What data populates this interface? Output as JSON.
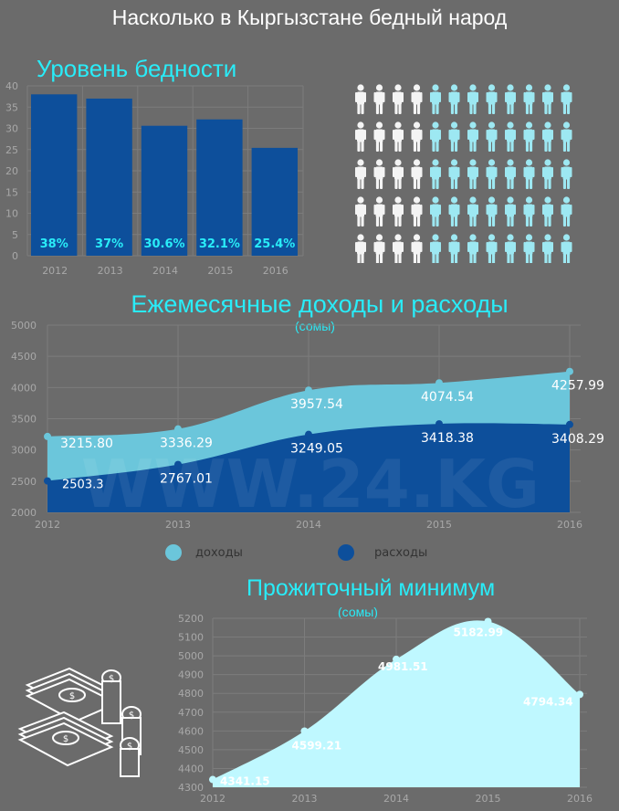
{
  "title": "Насколько в Кыргызстане бедный народ",
  "colors": {
    "background": "#6b6b6b",
    "accent": "#29ecf8",
    "poverty_bar": "#0d4f9b",
    "income": "#6bc6db",
    "expenses": "#0d4f9b",
    "minimum": "#bff8ff",
    "person_white": "#f4f4f4",
    "person_cyan": "#9de8f2"
  },
  "icons": {
    "people": "person-icon",
    "money": "money-stack-icon"
  },
  "pictogram": {
    "rows": 5,
    "per_row": 12,
    "highlighted_per_row": 4
  },
  "watermark": "WWW.24.KG",
  "poverty": {
    "title": "Уровень бедности",
    "chart_data": {
      "type": "bar",
      "categories": [
        "2012",
        "2013",
        "2014",
        "2015",
        "2016"
      ],
      "values": [
        38,
        37,
        30.6,
        32.1,
        25.4
      ],
      "labels": [
        "38%",
        "37%",
        "30.6%",
        "32.1%",
        "25.4%"
      ],
      "ylim": [
        0,
        40
      ],
      "yticks": [
        "0",
        "5",
        "10",
        "15",
        "20",
        "25",
        "30",
        "35",
        "40"
      ],
      "grid": true
    }
  },
  "income_expenses": {
    "title": "Ежемесячные доходы и расходы",
    "unit": "(сомы)",
    "chart_data": {
      "type": "area",
      "x": [
        "2012",
        "2013",
        "2014",
        "2015",
        "2016"
      ],
      "ylim": [
        2000,
        5000
      ],
      "yticks": [
        "2000",
        "2500",
        "3000",
        "3500",
        "4000",
        "4500",
        "5000"
      ],
      "series": [
        {
          "name": "доходы",
          "values": [
            3215.8,
            3336.29,
            3957.54,
            4074.54,
            4257.99
          ],
          "labels": [
            "3215.80",
            "3336.29",
            "3957.54",
            "4074.54",
            "4257.99"
          ]
        },
        {
          "name": "расходы",
          "values": [
            2503.3,
            2767.01,
            3249.05,
            3418.38,
            3408.29
          ],
          "labels": [
            "2503.3",
            "2767.01",
            "3249.05",
            "3418.38",
            "3408.29"
          ]
        }
      ],
      "legend": "bottom"
    }
  },
  "minimum": {
    "title": "Прожиточный минимум",
    "unit": "(сомы)",
    "chart_data": {
      "type": "area",
      "x": [
        "2012",
        "2013",
        "2014",
        "2015",
        "2016"
      ],
      "values": [
        4341.15,
        4599.21,
        4981.51,
        5182.99,
        4794.34
      ],
      "labels": [
        "4341.15",
        "4599.21",
        "4981.51",
        "5182.99",
        "4794.34"
      ],
      "ylim": [
        4300,
        5200
      ],
      "yticks": [
        "4300",
        "4400",
        "4500",
        "4600",
        "4700",
        "4800",
        "4900",
        "5000",
        "5100",
        "5200"
      ]
    }
  }
}
